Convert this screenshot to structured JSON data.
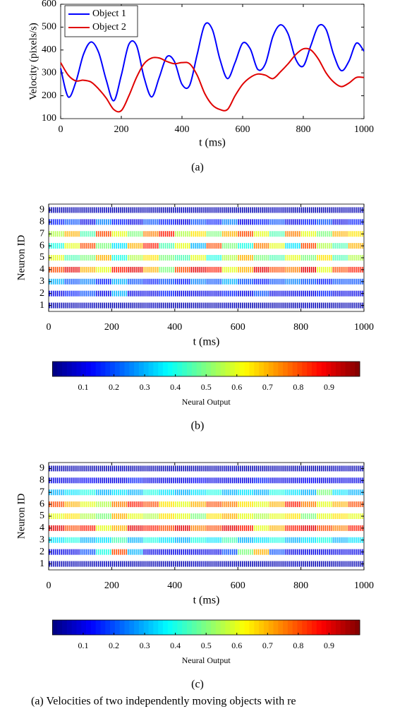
{
  "chart_data": [
    {
      "type": "line",
      "caption": "(a)",
      "xlabel": "t (ms)",
      "ylabel": "Velocity (pixels/s)",
      "xlim": [
        0,
        1000
      ],
      "xticks": [
        0,
        200,
        400,
        600,
        800,
        1000
      ],
      "ylim": [
        100,
        600
      ],
      "yticks": [
        100,
        200,
        300,
        400,
        500,
        600
      ],
      "legend": "upper left",
      "x": [
        0,
        25,
        50,
        75,
        100,
        125,
        150,
        175,
        200,
        225,
        250,
        275,
        300,
        325,
        350,
        375,
        400,
        425,
        450,
        475,
        500,
        525,
        550,
        575,
        600,
        625,
        650,
        675,
        700,
        725,
        750,
        775,
        800,
        825,
        850,
        875,
        900,
        925,
        950,
        975,
        1000
      ],
      "series": [
        {
          "name": "Object 1",
          "color": "#0000ff",
          "values": [
            320,
            195,
            260,
            380,
            435,
            390,
            270,
            178,
            290,
            425,
            420,
            280,
            195,
            280,
            370,
            350,
            250,
            245,
            380,
            510,
            490,
            360,
            275,
            345,
            430,
            405,
            315,
            340,
            460,
            510,
            470,
            360,
            330,
            420,
            505,
            490,
            380,
            310,
            350,
            430,
            395
          ]
        },
        {
          "name": "Object 2",
          "color": "#e00000",
          "values": [
            345,
            290,
            265,
            268,
            260,
            230,
            190,
            140,
            135,
            200,
            280,
            340,
            365,
            365,
            350,
            340,
            345,
            340,
            290,
            210,
            160,
            140,
            140,
            200,
            250,
            280,
            295,
            290,
            275,
            305,
            340,
            380,
            405,
            400,
            360,
            300,
            260,
            240,
            255,
            280,
            280
          ]
        }
      ]
    },
    {
      "type": "heatmap",
      "caption": "(b)",
      "xlabel": "t (ms)",
      "ylabel": "Neuron ID",
      "xlim": [
        0,
        1000
      ],
      "xticks": [
        0,
        200,
        400,
        600,
        800,
        1000
      ],
      "ylim": [
        0.5,
        9.5
      ],
      "yticks": [
        1,
        2,
        3,
        4,
        5,
        6,
        7,
        8,
        9
      ],
      "x_bins": [
        0,
        50,
        100,
        150,
        200,
        250,
        300,
        350,
        400,
        450,
        500,
        550,
        600,
        650,
        700,
        750,
        800,
        850,
        900,
        950,
        1000
      ],
      "values": [
        [
          0.05,
          0.05,
          0.06,
          0.05,
          0.05,
          0.05,
          0.06,
          0.05,
          0.05,
          0.05,
          0.05,
          0.06,
          0.05,
          0.05,
          0.05,
          0.05,
          0.06,
          0.05,
          0.05,
          0.05
        ],
        [
          0.1,
          0.15,
          0.2,
          0.1,
          0.3,
          0.1,
          0.1,
          0.15,
          0.1,
          0.1,
          0.1,
          0.15,
          0.1,
          0.2,
          0.1,
          0.1,
          0.1,
          0.15,
          0.1,
          0.1
        ],
        [
          0.3,
          0.2,
          0.25,
          0.15,
          0.3,
          0.2,
          0.15,
          0.2,
          0.15,
          0.25,
          0.2,
          0.3,
          0.2,
          0.15,
          0.2,
          0.25,
          0.2,
          0.15,
          0.2,
          0.2
        ],
        [
          0.8,
          0.9,
          0.7,
          0.6,
          0.85,
          0.9,
          0.7,
          0.5,
          0.8,
          0.9,
          0.85,
          0.6,
          0.7,
          0.9,
          0.8,
          0.75,
          0.9,
          0.6,
          0.8,
          0.85
        ],
        [
          0.6,
          0.45,
          0.5,
          0.7,
          0.4,
          0.55,
          0.65,
          0.5,
          0.45,
          0.6,
          0.4,
          0.55,
          0.7,
          0.5,
          0.45,
          0.6,
          0.5,
          0.65,
          0.45,
          0.55
        ],
        [
          0.4,
          0.6,
          0.8,
          0.5,
          0.35,
          0.7,
          0.85,
          0.45,
          0.6,
          0.3,
          0.8,
          0.5,
          0.4,
          0.75,
          0.6,
          0.35,
          0.8,
          0.55,
          0.45,
          0.7
        ],
        [
          0.55,
          0.7,
          0.45,
          0.8,
          0.6,
          0.5,
          0.75,
          0.85,
          0.55,
          0.65,
          0.5,
          0.7,
          0.8,
          0.6,
          0.45,
          0.75,
          0.6,
          0.5,
          0.7,
          0.65
        ],
        [
          0.15,
          0.2,
          0.1,
          0.25,
          0.15,
          0.1,
          0.2,
          0.15,
          0.1,
          0.2,
          0.15,
          0.25,
          0.1,
          0.15,
          0.2,
          0.1,
          0.15,
          0.2,
          0.1,
          0.15
        ],
        [
          0.05,
          0.05,
          0.05,
          0.06,
          0.05,
          0.05,
          0.05,
          0.05,
          0.06,
          0.05,
          0.05,
          0.05,
          0.05,
          0.05,
          0.06,
          0.05,
          0.05,
          0.05,
          0.05,
          0.05
        ]
      ],
      "colorbar": {
        "label": "Neural Output",
        "colormap": "jet",
        "lim": [
          0,
          1
        ],
        "ticks": [
          0.1,
          0.2,
          0.3,
          0.4,
          0.5,
          0.6,
          0.7,
          0.8,
          0.9
        ]
      }
    },
    {
      "type": "heatmap",
      "caption": "(c)",
      "xlabel": "t (ms)",
      "ylabel": "Neuron ID",
      "xlim": [
        0,
        1000
      ],
      "xticks": [
        0,
        200,
        400,
        600,
        800,
        1000
      ],
      "ylim": [
        0.5,
        9.5
      ],
      "yticks": [
        1,
        2,
        3,
        4,
        5,
        6,
        7,
        8,
        9
      ],
      "x_bins": [
        0,
        50,
        100,
        150,
        200,
        250,
        300,
        350,
        400,
        450,
        500,
        550,
        600,
        650,
        700,
        750,
        800,
        850,
        900,
        950,
        1000
      ],
      "values": [
        [
          0.05,
          0.05,
          0.05,
          0.06,
          0.05,
          0.05,
          0.05,
          0.05,
          0.05,
          0.06,
          0.05,
          0.05,
          0.05,
          0.05,
          0.05,
          0.06,
          0.05,
          0.05,
          0.05,
          0.05
        ],
        [
          0.1,
          0.1,
          0.2,
          0.4,
          0.8,
          0.3,
          0.1,
          0.1,
          0.1,
          0.1,
          0.1,
          0.2,
          0.5,
          0.7,
          0.2,
          0.1,
          0.1,
          0.1,
          0.1,
          0.1
        ],
        [
          0.35,
          0.4,
          0.3,
          0.35,
          0.45,
          0.3,
          0.4,
          0.35,
          0.3,
          0.4,
          0.35,
          0.45,
          0.3,
          0.35,
          0.4,
          0.3,
          0.35,
          0.4,
          0.3,
          0.35
        ],
        [
          0.9,
          0.8,
          0.85,
          0.6,
          0.7,
          0.9,
          0.85,
          0.8,
          0.9,
          0.75,
          0.8,
          0.9,
          0.85,
          0.6,
          0.7,
          0.85,
          0.9,
          0.8,
          0.75,
          0.85
        ],
        [
          0.6,
          0.65,
          0.55,
          0.5,
          0.7,
          0.6,
          0.55,
          0.65,
          0.6,
          0.5,
          0.65,
          0.7,
          0.6,
          0.55,
          0.6,
          0.65,
          0.5,
          0.6,
          0.65,
          0.6
        ],
        [
          0.8,
          0.7,
          0.6,
          0.55,
          0.75,
          0.85,
          0.8,
          0.65,
          0.6,
          0.7,
          0.8,
          0.75,
          0.65,
          0.6,
          0.7,
          0.85,
          0.75,
          0.6,
          0.7,
          0.8
        ],
        [
          0.3,
          0.35,
          0.4,
          0.3,
          0.35,
          0.3,
          0.4,
          0.35,
          0.3,
          0.35,
          0.4,
          0.3,
          0.35,
          0.3,
          0.4,
          0.35,
          0.3,
          0.5,
          0.35,
          0.3
        ],
        [
          0.1,
          0.1,
          0.12,
          0.1,
          0.1,
          0.15,
          0.1,
          0.1,
          0.1,
          0.12,
          0.1,
          0.1,
          0.1,
          0.15,
          0.1,
          0.1,
          0.12,
          0.1,
          0.1,
          0.1
        ],
        [
          0.05,
          0.05,
          0.05,
          0.05,
          0.06,
          0.05,
          0.05,
          0.05,
          0.05,
          0.05,
          0.05,
          0.06,
          0.05,
          0.05,
          0.05,
          0.05,
          0.05,
          0.05,
          0.06,
          0.05
        ]
      ],
      "colorbar": {
        "label": "Neural Output",
        "colormap": "jet",
        "lim": [
          0,
          1
        ],
        "ticks": [
          0.1,
          0.2,
          0.3,
          0.4,
          0.5,
          0.6,
          0.7,
          0.8,
          0.9
        ]
      }
    }
  ],
  "caption_text": "(a) Velocities of two independently moving objects with re"
}
